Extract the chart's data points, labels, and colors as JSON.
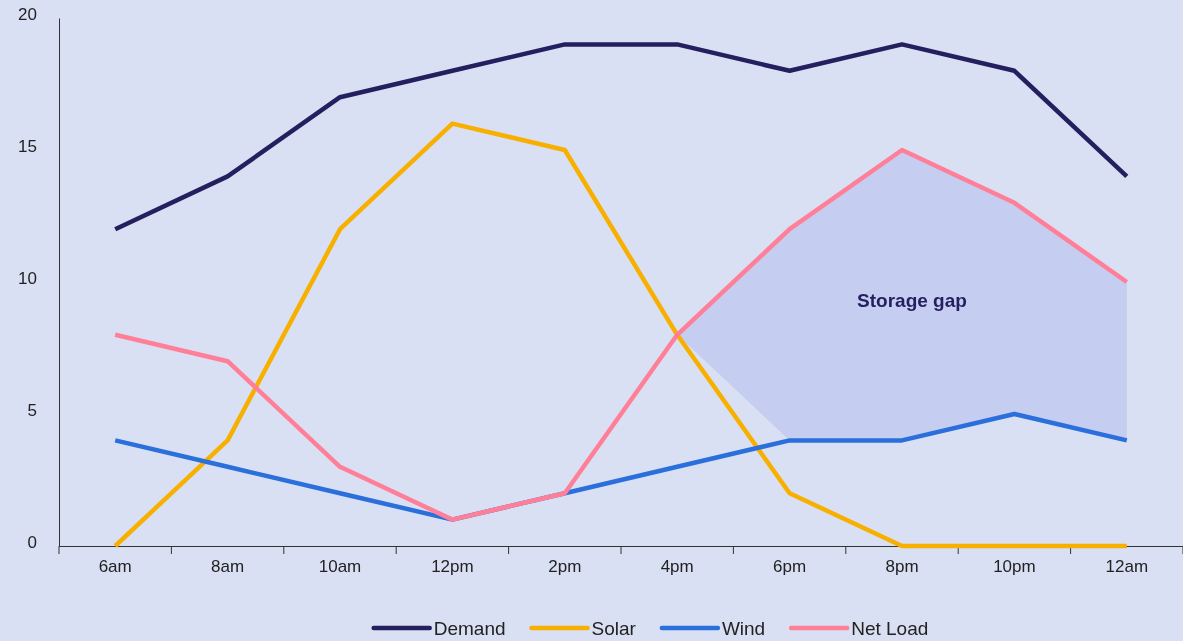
{
  "chart_data": {
    "type": "line",
    "categories": [
      "6am",
      "8am",
      "10am",
      "12pm",
      "2pm",
      "4pm",
      "6pm",
      "8pm",
      "10pm",
      "12am"
    ],
    "ylim": [
      0,
      20
    ],
    "yticks": [
      0,
      5,
      10,
      15,
      20
    ],
    "grid": false,
    "legend": "bottom",
    "line_style": "solid",
    "marker": "none",
    "annotations": [
      "Storage gap"
    ],
    "series": [
      {
        "name": "Demand",
        "color": "#241f5e",
        "values": [
          12,
          14,
          17,
          18,
          19,
          19,
          18,
          19,
          18,
          14
        ]
      },
      {
        "name": "Solar",
        "color": "#f7b000",
        "values": [
          0,
          4,
          12,
          16,
          15,
          8,
          2,
          0,
          0,
          0
        ]
      },
      {
        "name": "Wind",
        "color": "#2a6fdb",
        "values": [
          4,
          3,
          2,
          1,
          2,
          3,
          4,
          4,
          5,
          4
        ]
      },
      {
        "name": "Net Load",
        "color": "#ff7f98",
        "values": [
          8,
          7,
          3,
          1,
          2,
          8,
          12,
          15,
          13,
          10
        ],
        "lower": [
          null,
          null,
          null,
          null,
          null,
          8,
          4,
          4,
          5,
          4
        ],
        "upper": [
          null,
          null,
          null,
          null,
          null,
          8,
          12,
          15,
          13,
          10
        ]
      }
    ]
  }
}
